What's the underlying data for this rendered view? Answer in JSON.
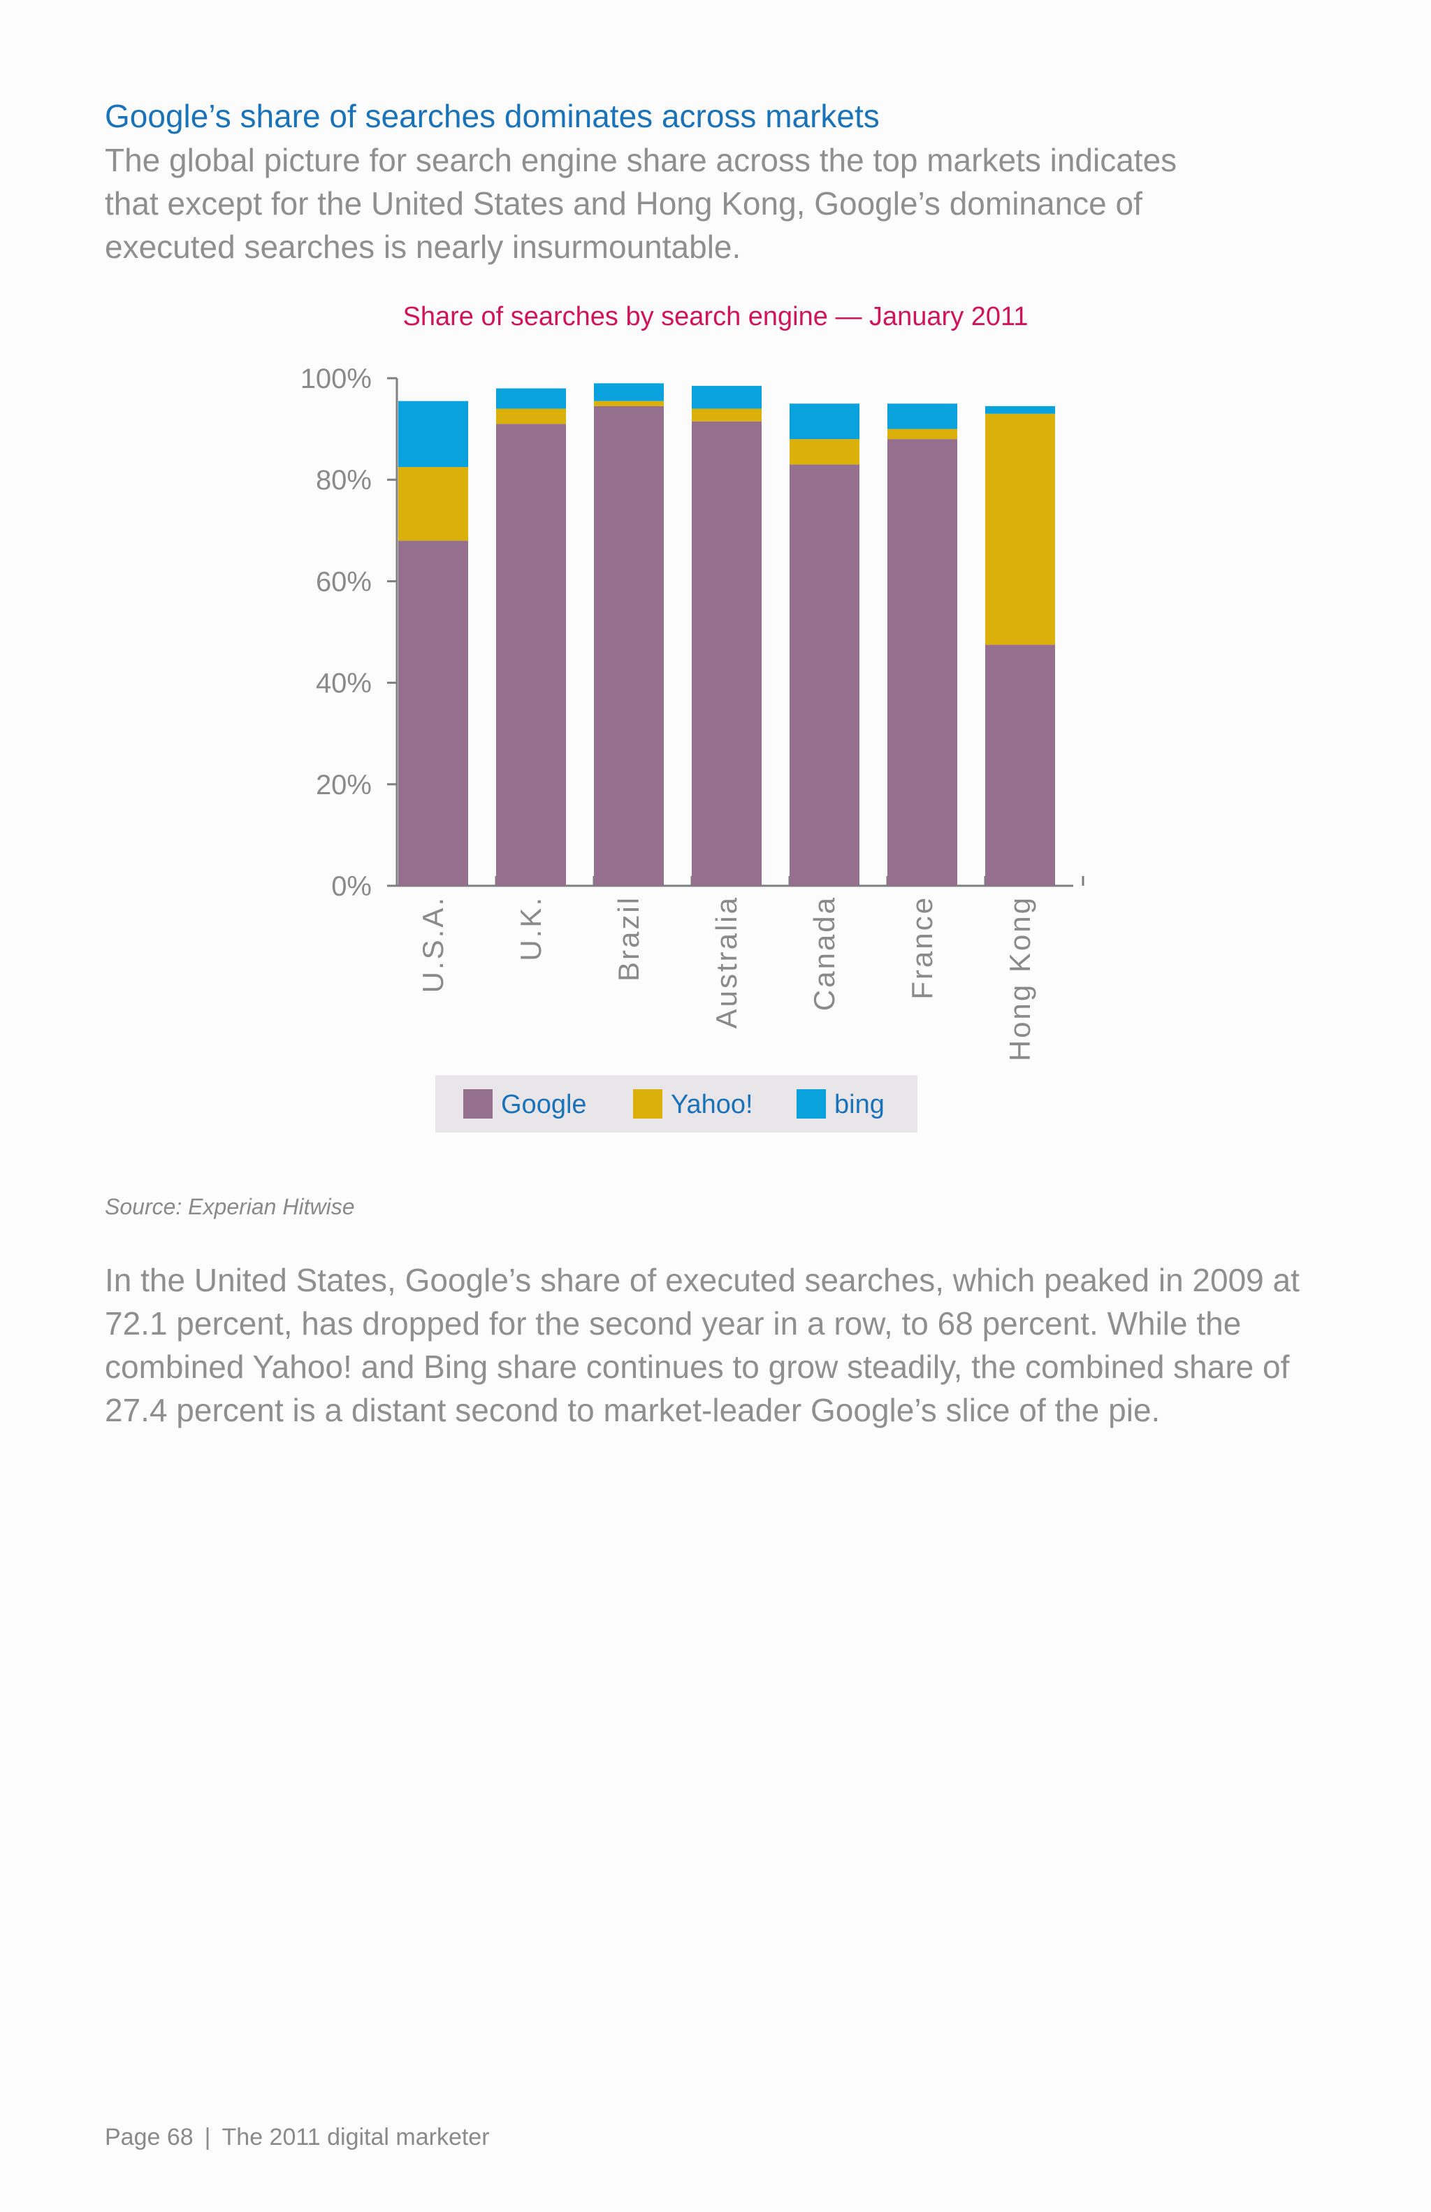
{
  "heading": "Google’s share of searches dominates across markets",
  "intro": "The global picture for search engine share across the top markets indicates that except for the United States and Hong Kong, Google’s dominance of executed searches is nearly insurmountable.",
  "chart_data": {
    "type": "bar",
    "stacked": true,
    "title": "Share of searches by search engine — January 2011",
    "xlabel": "",
    "ylabel": "",
    "ylim": [
      0,
      100
    ],
    "yticks": [
      "0%",
      "20%",
      "40%",
      "60%",
      "80%",
      "100%"
    ],
    "ytick_values": [
      0,
      20,
      40,
      60,
      80,
      100
    ],
    "categories": [
      "U.S.A.",
      "U.K.",
      "Brazil",
      "Australia",
      "Canada",
      "France",
      "Hong Kong"
    ],
    "series": [
      {
        "name": "Google",
        "color": "#94708e",
        "values": [
          68,
          91,
          94.5,
          91.5,
          83,
          88,
          47.5
        ]
      },
      {
        "name": "Yahoo!",
        "color": "#dcb00a",
        "values": [
          14.5,
          3,
          1,
          2.5,
          5,
          2,
          45.5
        ]
      },
      {
        "name": "bing",
        "color": "#0aa2dc",
        "values": [
          13,
          4,
          3.5,
          4.5,
          7,
          5,
          1.5
        ]
      }
    ],
    "legend_position": "bottom",
    "grid": false
  },
  "source": "Source: Experian Hitwise",
  "body": "In the United States, Google’s share of executed searches, which peaked in 2009 at 72.1 percent, has dropped for the second year in a row, to 68 percent. While the combined Yahoo! and Bing share continues to grow steadily, the combined share of 27.4 percent is a distant second to market-leader Google’s slice of the pie.",
  "footer": {
    "page": "Page 68",
    "separator": "|",
    "publication": "The 2011 digital marketer"
  }
}
